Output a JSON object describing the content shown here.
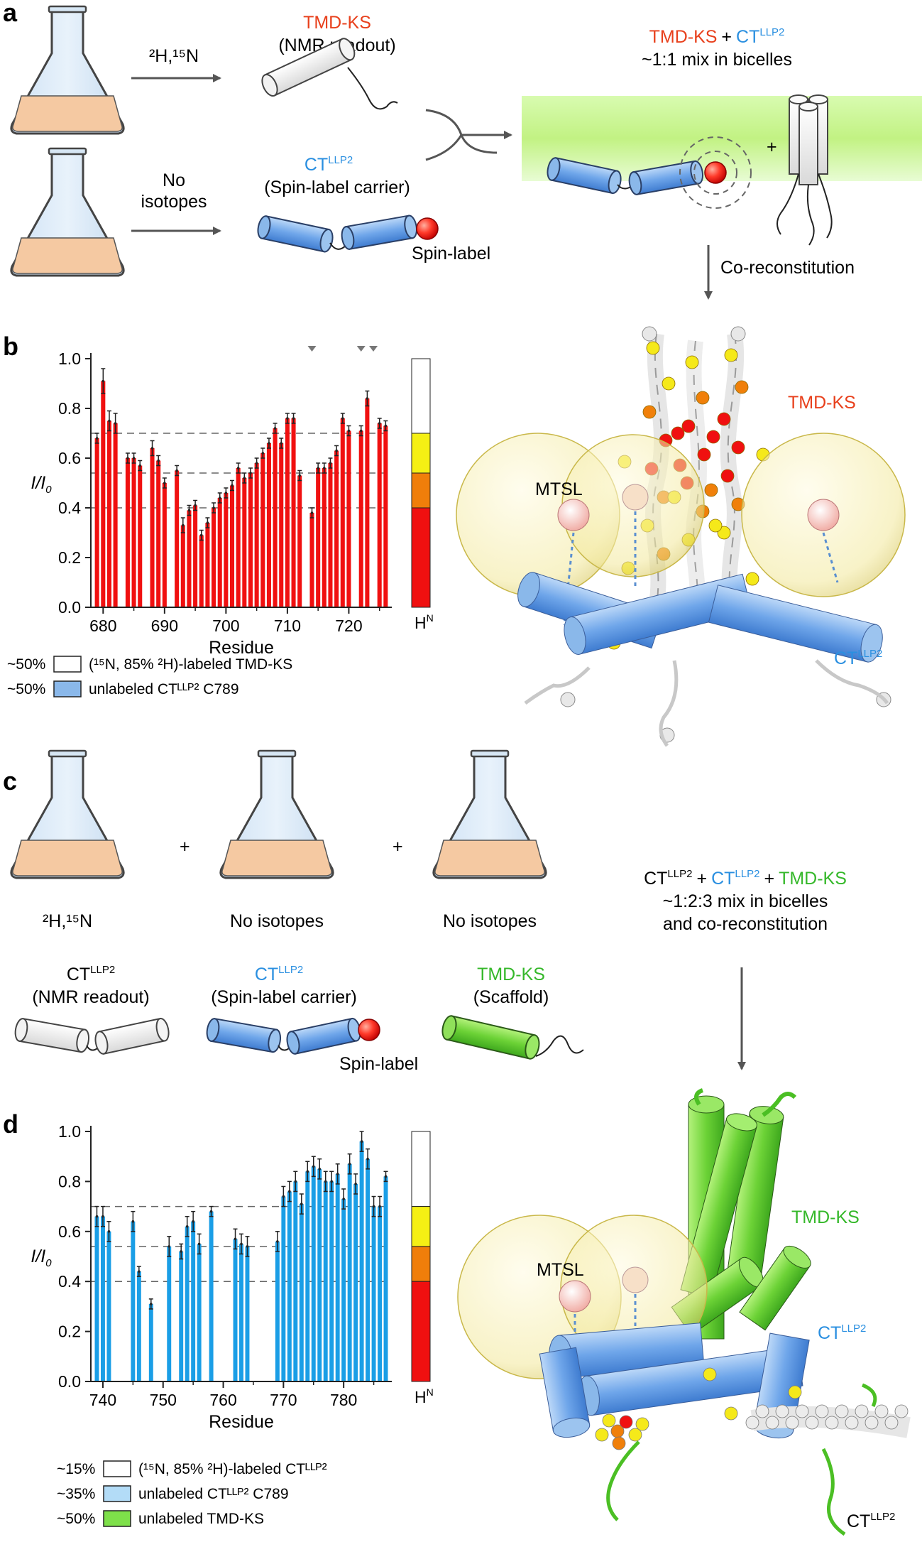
{
  "colors": {
    "tmd_ks_red": "#e8401c",
    "ct_blue": "#2a8fe0",
    "green": "#35b82a",
    "bar_red": "#f01010",
    "bar_blue": "#1a9ee6",
    "flask_liquid": "#f5c9a2",
    "bicelle": "#c8f58a",
    "scale": [
      "#ffffff",
      "#f5f014",
      "#f07e0a",
      "#f01010"
    ]
  },
  "panel_a": {
    "letter": "a",
    "iso1": "²H,¹⁵N",
    "iso2_l1": "No",
    "iso2_l2": "isotopes",
    "tmd_title": "TMD-KS",
    "tmd_sub": "(NMR readout)",
    "ct_title": "CT",
    "ct_sup": "LLP2",
    "ct_sub": "(Spin-label carrier)",
    "spin_label": "Spin-label",
    "mix_tmd": "TMD-KS",
    "mix_plus": "+",
    "mix_ct": "CT",
    "mix_sup": "LLP2",
    "mix_line2": "~1:1 mix in bicelles",
    "plus": "+",
    "coreconst": "Co-reconstitution"
  },
  "panel_b": {
    "letter": "b",
    "mol_tmd": "TMD-KS",
    "mol_mtsl": "MTSL",
    "mol_ct": "CT",
    "mol_sup": "LLP2",
    "legend": [
      {
        "pct": "~50%",
        "text": "(¹⁵N, 85% ²H)-labeled TMD-KS",
        "color": "#ffffff"
      },
      {
        "pct": "~50%",
        "text": "unlabeled CTᴸᴸᴾ² C789",
        "color": "#8ab8ea"
      }
    ]
  },
  "panel_c": {
    "letter": "c",
    "flask1": "²H,¹⁵N",
    "flask2": "No isotopes",
    "flask3": "No isotopes",
    "plus": "+",
    "ct1_title": "CT",
    "ct1_sup": "LLP2",
    "ct1_sub": "(NMR readout)",
    "ct2_title": "CT",
    "ct2_sup": "LLP2",
    "ct2_sub": "(Spin-label carrier)",
    "spin_label": "Spin-label",
    "tmd_title": "TMD-KS",
    "tmd_sub": "(Scaffold)",
    "mix_ct1": "CT",
    "mix_sup": "LLP2",
    "mix_plus": "+",
    "mix_ct2": "CT",
    "mix_tmd": "TMD-KS",
    "mix_line2": "~1:2:3 mix in bicelles",
    "mix_line3": "and co-reconstitution"
  },
  "panel_d": {
    "letter": "d",
    "mol_tmd": "TMD-KS",
    "mol_mtsl": "MTSL",
    "mol_ct": "CT",
    "mol_sup": "LLP2",
    "legend": [
      {
        "pct": "~15%",
        "text": "(¹⁵N, 85% ²H)-labeled CTᴸᴸᴾ²",
        "color": "#ffffff"
      },
      {
        "pct": "~35%",
        "text": "unlabeled CTᴸᴸᴾ² C789",
        "color": "#b3dcf7"
      },
      {
        "pct": "~50%",
        "text": "unlabeled TMD-KS",
        "color": "#7ee04a"
      }
    ]
  },
  "chart_data": [
    {
      "type": "bar",
      "panel": "b",
      "xlabel": "Residue",
      "ylabel": "I/I0",
      "xlim": [
        678,
        727
      ],
      "ylim": [
        0,
        1.0
      ],
      "xticks": [
        680,
        690,
        700,
        710,
        720
      ],
      "yticks": [
        0.0,
        0.2,
        0.4,
        0.6,
        0.8,
        1.0
      ],
      "thresholds": [
        0.7,
        0.54,
        0.4
      ],
      "markers_at": [
        714,
        722,
        724
      ],
      "scale_label": "H",
      "scale_sup": "N",
      "x": [
        679,
        680,
        681,
        682,
        684,
        685,
        686,
        688,
        689,
        690,
        692,
        693,
        694,
        695,
        696,
        697,
        698,
        699,
        700,
        701,
        702,
        703,
        704,
        705,
        706,
        707,
        708,
        709,
        710,
        711,
        712,
        714,
        715,
        716,
        717,
        718,
        719,
        720,
        722,
        723,
        725,
        726
      ],
      "values": [
        0.68,
        0.91,
        0.75,
        0.74,
        0.6,
        0.6,
        0.57,
        0.64,
        0.59,
        0.5,
        0.55,
        0.33,
        0.39,
        0.41,
        0.29,
        0.34,
        0.4,
        0.44,
        0.46,
        0.49,
        0.56,
        0.52,
        0.54,
        0.58,
        0.62,
        0.66,
        0.72,
        0.66,
        0.76,
        0.76,
        0.53,
        0.38,
        0.56,
        0.56,
        0.58,
        0.63,
        0.76,
        0.71,
        0.71,
        0.84,
        0.74,
        0.73
      ],
      "errors": [
        0.02,
        0.05,
        0.04,
        0.04,
        0.02,
        0.02,
        0.02,
        0.03,
        0.02,
        0.02,
        0.02,
        0.03,
        0.02,
        0.02,
        0.02,
        0.02,
        0.02,
        0.02,
        0.02,
        0.02,
        0.02,
        0.02,
        0.02,
        0.02,
        0.02,
        0.02,
        0.02,
        0.02,
        0.02,
        0.02,
        0.02,
        0.02,
        0.02,
        0.02,
        0.02,
        0.02,
        0.02,
        0.02,
        0.02,
        0.03,
        0.02,
        0.02
      ]
    },
    {
      "type": "bar",
      "panel": "d",
      "xlabel": "Residue",
      "ylabel": "I/I0",
      "xlim": [
        738,
        788
      ],
      "ylim": [
        0,
        1.0
      ],
      "xticks": [
        740,
        750,
        760,
        770,
        780
      ],
      "yticks": [
        0.0,
        0.2,
        0.4,
        0.6,
        0.8,
        1.0
      ],
      "thresholds": [
        0.7,
        0.54,
        0.4
      ],
      "scale_label": "H",
      "scale_sup": "N",
      "x": [
        739,
        740,
        741,
        745,
        746,
        748,
        751,
        753,
        754,
        755,
        756,
        758,
        762,
        763,
        764,
        769,
        770,
        771,
        772,
        773,
        774,
        775,
        776,
        777,
        778,
        779,
        780,
        781,
        782,
        783,
        784,
        785,
        786,
        787
      ],
      "values": [
        0.66,
        0.66,
        0.6,
        0.64,
        0.44,
        0.31,
        0.54,
        0.52,
        0.62,
        0.64,
        0.55,
        0.68,
        0.57,
        0.55,
        0.54,
        0.56,
        0.74,
        0.76,
        0.8,
        0.71,
        0.84,
        0.86,
        0.85,
        0.8,
        0.8,
        0.83,
        0.73,
        0.87,
        0.79,
        0.96,
        0.89,
        0.7,
        0.7,
        0.82
      ],
      "errors": [
        0.04,
        0.04,
        0.04,
        0.04,
        0.02,
        0.02,
        0.04,
        0.03,
        0.04,
        0.04,
        0.04,
        0.02,
        0.04,
        0.04,
        0.04,
        0.04,
        0.04,
        0.04,
        0.04,
        0.04,
        0.04,
        0.04,
        0.04,
        0.04,
        0.04,
        0.04,
        0.04,
        0.04,
        0.04,
        0.04,
        0.04,
        0.04,
        0.04,
        0.02
      ]
    }
  ]
}
